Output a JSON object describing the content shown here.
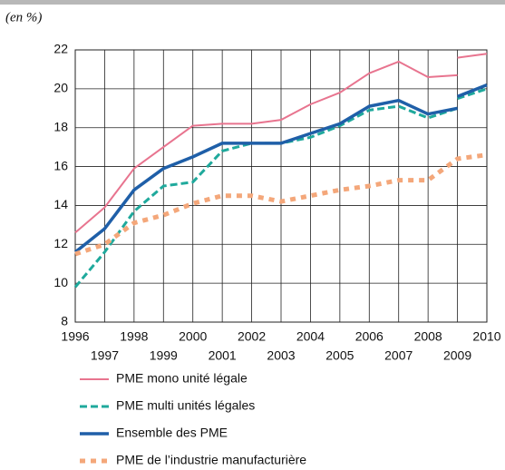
{
  "chart_data": {
    "type": "line",
    "unit_note": "(en %)",
    "xlim": [
      1996,
      2010
    ],
    "xticks": [
      1996,
      1997,
      1998,
      1999,
      2000,
      2001,
      2002,
      2003,
      2004,
      2005,
      2006,
      2007,
      2008,
      2009,
      2010
    ],
    "ylim": [
      8,
      22
    ],
    "yticks": [
      8,
      10,
      12,
      14,
      16,
      18,
      20,
      22
    ],
    "grid": true,
    "series": [
      {
        "name": "PME mono unité légale",
        "color": "#e8748f",
        "style": "solid",
        "x": [
          1996,
          1997,
          1998,
          1999,
          2000,
          2001,
          2002,
          2003,
          2004,
          2005,
          2006,
          2007,
          2008,
          2009,
          null,
          2009,
          2010
        ],
        "values": [
          12.6,
          13.9,
          15.9,
          17.0,
          18.1,
          18.2,
          18.2,
          18.4,
          19.2,
          19.8,
          20.8,
          21.4,
          20.6,
          20.7,
          null,
          21.6,
          21.8
        ]
      },
      {
        "name": "PME multi unités légales",
        "color": "#1fa99c",
        "style": "dashed",
        "x": [
          1996,
          1997,
          1998,
          1999,
          2000,
          2001,
          2002,
          2003,
          2004,
          2005,
          2006,
          2007,
          2008,
          2009,
          null,
          2009,
          2010
        ],
        "values": [
          9.8,
          11.6,
          13.7,
          15.0,
          15.2,
          16.8,
          17.2,
          17.2,
          17.5,
          18.1,
          18.9,
          19.1,
          18.5,
          19.0,
          null,
          19.5,
          20.0
        ]
      },
      {
        "name": "Ensemble des PME",
        "color": "#1f5fa8",
        "style": "solid-thick",
        "x": [
          1996,
          1997,
          1998,
          1999,
          2000,
          2001,
          2002,
          2003,
          2004,
          2005,
          2006,
          2007,
          2008,
          2009,
          null,
          2009,
          2010
        ],
        "values": [
          11.6,
          12.8,
          14.8,
          15.9,
          16.5,
          17.2,
          17.2,
          17.2,
          17.7,
          18.2,
          19.1,
          19.4,
          18.7,
          19.0,
          null,
          19.6,
          20.2
        ]
      },
      {
        "name": "PME de l’industrie manufacturière",
        "color": "#f4a77a",
        "style": "dotted",
        "x": [
          1996,
          1997,
          1998,
          1999,
          2000,
          2001,
          2002,
          2003,
          2004,
          2005,
          2006,
          2007,
          2008,
          2009,
          2010
        ],
        "values": [
          11.5,
          12.0,
          13.1,
          13.5,
          14.1,
          14.5,
          14.5,
          14.2,
          14.5,
          14.8,
          15.0,
          15.3,
          15.3,
          16.4,
          16.6
        ]
      }
    ]
  }
}
